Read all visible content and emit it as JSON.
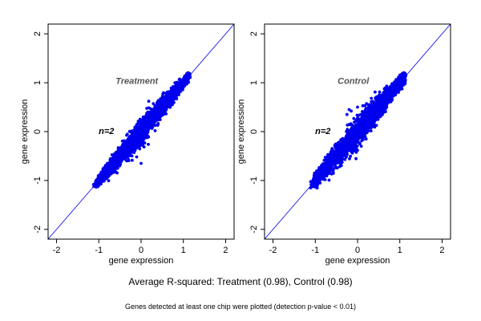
{
  "chart_data": [
    {
      "type": "scatter",
      "title": "Treatment",
      "annotation": "n=2",
      "xlabel": "gene expression",
      "ylabel": "gene expression",
      "xlim": [
        -2.2,
        2.2
      ],
      "ylim": [
        -2.2,
        2.2
      ],
      "xticks": [
        "-2",
        "-1",
        "0",
        "1",
        "2"
      ],
      "yticks": [
        "-2",
        "-1",
        "0",
        "1",
        "2"
      ],
      "reference_line": "y = x",
      "point_color": "#0000ee",
      "line_color": "#0000ee",
      "grid": false,
      "cloud": {
        "x_range": [
          -1.05,
          1.12
        ],
        "spread": 0.1,
        "points": 2400
      },
      "outliers": [
        [
          0.18,
          0.62
        ],
        [
          -0.1,
          -0.3
        ],
        [
          0.0,
          -0.65
        ],
        [
          0.4,
          0.15
        ],
        [
          0.8,
          1.0
        ],
        [
          -0.3,
          -0.15
        ]
      ]
    },
    {
      "type": "scatter",
      "title": "Control",
      "annotation": "n=2",
      "xlabel": "gene expression",
      "ylabel": "gene expression",
      "xlim": [
        -2.2,
        2.2
      ],
      "ylim": [
        -2.2,
        2.2
      ],
      "xticks": [
        "-2",
        "-1",
        "0",
        "1",
        "2"
      ],
      "yticks": [
        "-2",
        "-1",
        "0",
        "1",
        "2"
      ],
      "reference_line": "y = x",
      "point_color": "#0000ee",
      "line_color": "#0000ee",
      "grid": false,
      "cloud": {
        "x_range": [
          -1.05,
          1.12
        ],
        "spread": 0.12,
        "points": 2400
      },
      "outliers": [
        [
          -0.2,
          0.45
        ],
        [
          -0.15,
          0.42
        ],
        [
          -0.25,
          0.35
        ],
        [
          0.0,
          0.5
        ],
        [
          0.3,
          0.55
        ],
        [
          -0.1,
          -0.3
        ]
      ]
    }
  ],
  "caption_main": "Average R-squared: Treatment (0.98), Control (0.98)",
  "caption_note": "Genes detected at least one chip were plotted (detection p-value < 0.01)"
}
